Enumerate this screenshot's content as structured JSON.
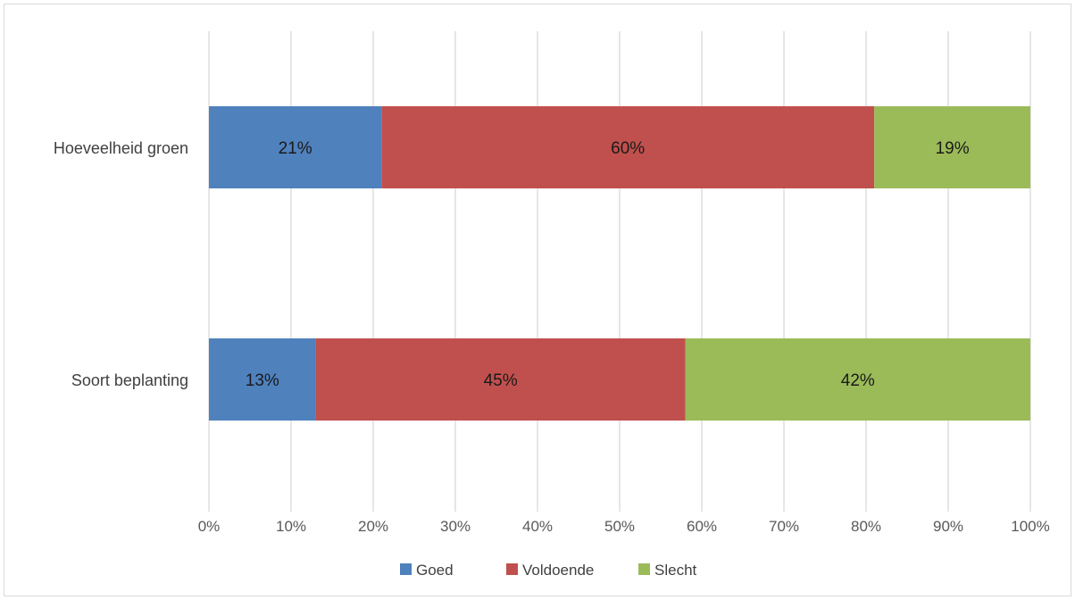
{
  "chart_data": {
    "type": "bar",
    "orientation": "horizontal",
    "stacked": "percent",
    "categories": [
      "Hoeveelheid groen",
      "Soort beplanting"
    ],
    "series": [
      {
        "name": "Goed",
        "values": [
          21,
          13
        ],
        "labels": [
          "21%",
          "13%"
        ],
        "color": "#4f81bd"
      },
      {
        "name": "Voldoende",
        "values": [
          60,
          45
        ],
        "labels": [
          "60%",
          "45%"
        ],
        "color": "#c0504d"
      },
      {
        "name": "Slecht",
        "values": [
          19,
          42
        ],
        "labels": [
          "19%",
          "42%"
        ],
        "color": "#9bbb59"
      }
    ],
    "xticks": [
      "0%",
      "10%",
      "20%",
      "30%",
      "40%",
      "50%",
      "60%",
      "70%",
      "80%",
      "90%",
      "100%"
    ],
    "xlim": [
      0,
      100
    ],
    "grid": true,
    "legend": "bottom",
    "title": "",
    "xlabel": "",
    "ylabel": ""
  }
}
